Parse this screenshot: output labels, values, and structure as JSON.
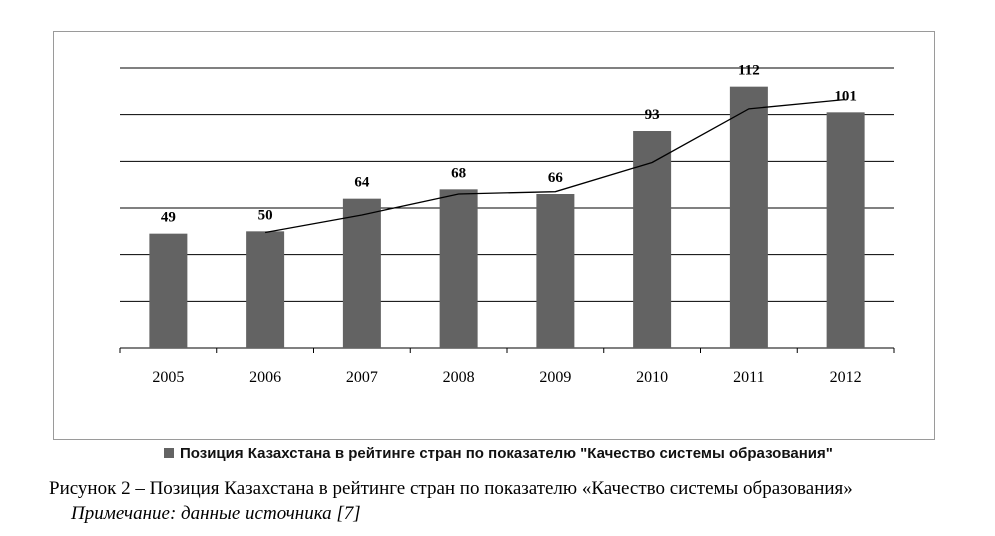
{
  "chart_data": {
    "type": "bar",
    "categories": [
      "2005",
      "2006",
      "2007",
      "2008",
      "2009",
      "2010",
      "2011",
      "2012"
    ],
    "series": [
      {
        "name": "Позиция Казахстана в рейтинге стран по показателю \"Качество системы образования\"",
        "values": [
          49,
          50,
          64,
          68,
          66,
          93,
          112,
          101
        ],
        "color": "#636363"
      }
    ],
    "trendline": {
      "type": "moving-average",
      "period": 2,
      "color": "#000000"
    },
    "ylim": [
      0,
      120
    ],
    "yticks": [
      0,
      20,
      40,
      60,
      80,
      100,
      120
    ],
    "grid": true,
    "legend_position": "bottom",
    "data_labels": true,
    "title": "",
    "xlabel": "",
    "ylabel": ""
  },
  "caption": "Рисунок 2 – Позиция Казахстана в рейтинге стран по показателю «Качество системы образования»",
  "note": "Примечание: данные источника [7]"
}
